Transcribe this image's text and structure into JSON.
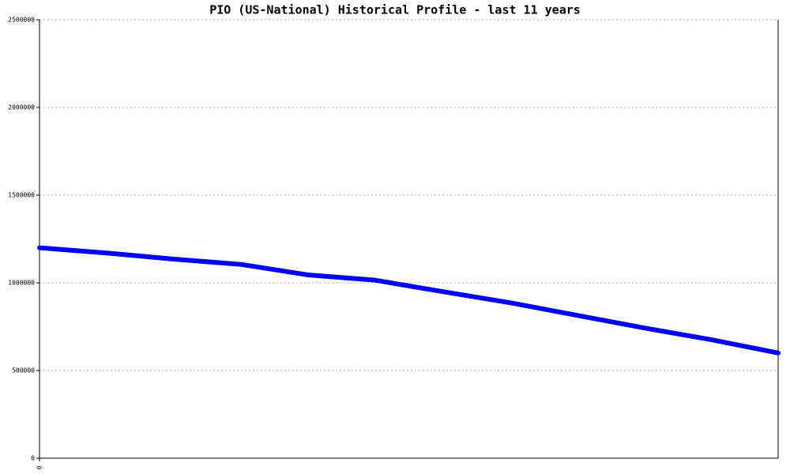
{
  "chart_data": {
    "type": "line",
    "title": "PIO (US-National) Historical Profile - last 11 years",
    "x": [
      0,
      1,
      2,
      3,
      4,
      5,
      6,
      7,
      8,
      9,
      10,
      11
    ],
    "series": [
      {
        "color": "#0000ff",
        "values": [
          1200000,
          1170000,
          1135000,
          1105000,
          1045000,
          1015000,
          950000,
          887000,
          815000,
          743000,
          676000,
          600000
        ]
      }
    ],
    "xlim": [
      0,
      11
    ],
    "xticks": [
      0
    ],
    "ylim": [
      0,
      2500000
    ],
    "yticks": [
      0,
      500000,
      1000000,
      1500000,
      2000000,
      2500000
    ],
    "grid": true
  }
}
